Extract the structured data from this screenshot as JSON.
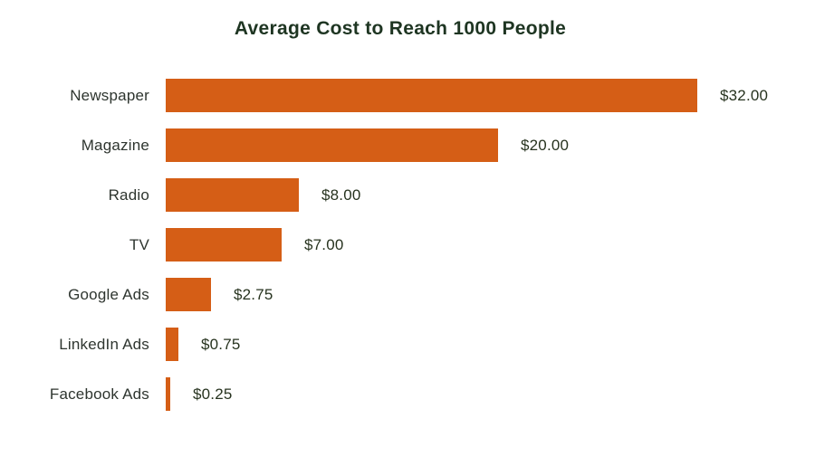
{
  "chart_data": {
    "type": "bar",
    "orientation": "horizontal",
    "title": "Average Cost to Reach 1000 People",
    "categories": [
      "Newspaper",
      "Magazine",
      "Radio",
      "TV",
      "Google Ads",
      "LinkedIn Ads",
      "Facebook Ads"
    ],
    "values": [
      32,
      20,
      8,
      7,
      2.75,
      0.75,
      0.25
    ],
    "value_labels": [
      "$32.00",
      "$20.00",
      "$8.00",
      "$7.00",
      "$2.75",
      "$0.75",
      "$0.25"
    ],
    "xlabel": "",
    "ylabel": "",
    "xlim": [
      0,
      32
    ],
    "grid": false,
    "legend": false,
    "axis_lines": false,
    "colors": {
      "bar": "#D55E16",
      "title": "#1E3522",
      "category_label": "#2E352F",
      "value_label": "#27331F"
    }
  }
}
